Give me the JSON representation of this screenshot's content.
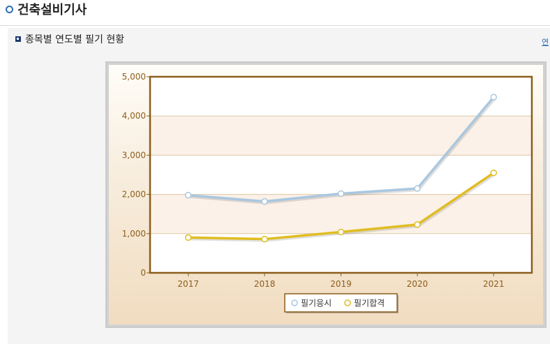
{
  "page": {
    "title": "건축설비기사",
    "section_title": "종목별 연도별 필기 현황",
    "side_link": "연"
  },
  "colors": {
    "series_apply": "#a9c7e0",
    "series_pass": "#e0bd22",
    "axis": "#8b5e1c",
    "tick_text": "#8b5e1c"
  },
  "chart_data": {
    "type": "line",
    "x": [
      "2017",
      "2018",
      "2019",
      "2020",
      "2021"
    ],
    "ylim": [
      0,
      5000
    ],
    "yticks": [
      0,
      1000,
      2000,
      3000,
      4000,
      5000
    ],
    "ytick_labels": [
      "0",
      "1,000",
      "2,000",
      "3,000",
      "4,000",
      "5,000"
    ],
    "grid": true,
    "legend": "bottom-center",
    "series": [
      {
        "name": "필기응시",
        "values": [
          1980,
          1820,
          2020,
          2150,
          4480
        ]
      },
      {
        "name": "필기합격",
        "values": [
          900,
          860,
          1040,
          1230,
          2550
        ]
      }
    ]
  }
}
